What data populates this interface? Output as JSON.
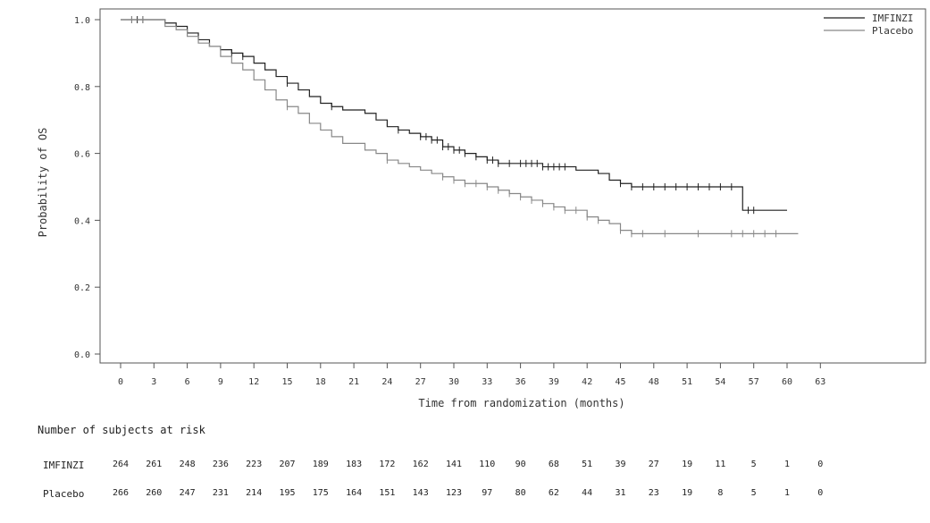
{
  "chart_data": {
    "type": "line",
    "xlabel": "Time from randomization (months)",
    "ylabel": "Probability of OS",
    "xlim": [
      -3,
      78
    ],
    "ylim": [
      0.0,
      1.0
    ],
    "x_ticks": [
      "0",
      "3",
      "6",
      "9",
      "12",
      "15",
      "18",
      "21",
      "24",
      "27",
      "30",
      "33",
      "36",
      "39",
      "42",
      "45",
      "48",
      "51",
      "54",
      "57",
      "60",
      "63"
    ],
    "y_ticks": [
      "0.0",
      "0.2",
      "0.4",
      "0.6",
      "0.8",
      "1.0"
    ],
    "legend_position": "top-right",
    "series": [
      {
        "name": "IMFINZI",
        "color": "#222222",
        "points": [
          [
            0,
            1.0
          ],
          [
            3,
            1.0
          ],
          [
            4,
            0.99
          ],
          [
            5,
            0.98
          ],
          [
            6,
            0.96
          ],
          [
            7,
            0.94
          ],
          [
            8,
            0.92
          ],
          [
            9,
            0.91
          ],
          [
            10,
            0.9
          ],
          [
            11,
            0.89
          ],
          [
            12,
            0.87
          ],
          [
            13,
            0.85
          ],
          [
            14,
            0.83
          ],
          [
            15,
            0.81
          ],
          [
            16,
            0.79
          ],
          [
            17,
            0.77
          ],
          [
            18,
            0.75
          ],
          [
            19,
            0.74
          ],
          [
            20,
            0.73
          ],
          [
            21,
            0.73
          ],
          [
            22,
            0.72
          ],
          [
            23,
            0.7
          ],
          [
            24,
            0.68
          ],
          [
            25,
            0.67
          ],
          [
            26,
            0.66
          ],
          [
            27,
            0.65
          ],
          [
            28,
            0.64
          ],
          [
            29,
            0.62
          ],
          [
            30,
            0.61
          ],
          [
            31,
            0.6
          ],
          [
            32,
            0.59
          ],
          [
            33,
            0.58
          ],
          [
            34,
            0.57
          ],
          [
            35,
            0.57
          ],
          [
            36,
            0.57
          ],
          [
            38,
            0.56
          ],
          [
            40,
            0.56
          ],
          [
            41,
            0.55
          ],
          [
            42,
            0.55
          ],
          [
            43,
            0.54
          ],
          [
            44,
            0.52
          ],
          [
            45,
            0.51
          ],
          [
            46,
            0.5
          ],
          [
            56,
            0.5
          ],
          [
            56,
            0.43
          ],
          [
            60,
            0.43
          ]
        ],
        "censor_x": [
          1,
          1.5,
          2,
          10,
          11,
          15,
          19,
          25,
          27,
          27.5,
          28,
          28.5,
          29,
          29.5,
          30,
          30.5,
          31,
          32,
          33,
          33.5,
          34,
          35,
          36,
          36.5,
          37,
          37.5,
          38,
          38.5,
          39,
          39.5,
          40,
          45,
          46,
          47,
          48,
          49,
          50,
          51,
          52,
          53,
          54,
          55,
          56.5,
          57
        ]
      },
      {
        "name": "Placebo",
        "color": "#888888",
        "points": [
          [
            0,
            1.0
          ],
          [
            3,
            1.0
          ],
          [
            4,
            0.98
          ],
          [
            5,
            0.97
          ],
          [
            6,
            0.95
          ],
          [
            7,
            0.93
          ],
          [
            8,
            0.92
          ],
          [
            9,
            0.89
          ],
          [
            10,
            0.87
          ],
          [
            11,
            0.85
          ],
          [
            12,
            0.82
          ],
          [
            13,
            0.79
          ],
          [
            14,
            0.76
          ],
          [
            15,
            0.74
          ],
          [
            16,
            0.72
          ],
          [
            17,
            0.69
          ],
          [
            18,
            0.67
          ],
          [
            19,
            0.65
          ],
          [
            20,
            0.63
          ],
          [
            21,
            0.63
          ],
          [
            22,
            0.61
          ],
          [
            23,
            0.6
          ],
          [
            24,
            0.58
          ],
          [
            25,
            0.57
          ],
          [
            26,
            0.56
          ],
          [
            27,
            0.55
          ],
          [
            28,
            0.54
          ],
          [
            29,
            0.53
          ],
          [
            30,
            0.52
          ],
          [
            31,
            0.51
          ],
          [
            32,
            0.51
          ],
          [
            33,
            0.5
          ],
          [
            34,
            0.49
          ],
          [
            35,
            0.48
          ],
          [
            36,
            0.47
          ],
          [
            37,
            0.46
          ],
          [
            38,
            0.45
          ],
          [
            39,
            0.44
          ],
          [
            40,
            0.43
          ],
          [
            41,
            0.43
          ],
          [
            42,
            0.41
          ],
          [
            43,
            0.4
          ],
          [
            44,
            0.39
          ],
          [
            45,
            0.37
          ],
          [
            46,
            0.36
          ],
          [
            61,
            0.36
          ]
        ],
        "censor_x": [
          1,
          2,
          15,
          24,
          29,
          30,
          31,
          32,
          33,
          34,
          35,
          36,
          37,
          38,
          39,
          40,
          41,
          42,
          43,
          45,
          46,
          47,
          49,
          52,
          55,
          56,
          57,
          58,
          59
        ]
      }
    ]
  },
  "risk_table": {
    "title": "Number of subjects at risk",
    "rows": [
      {
        "label": "IMFINZI",
        "values": [
          "264",
          "261",
          "248",
          "236",
          "223",
          "207",
          "189",
          "183",
          "172",
          "162",
          "141",
          "110",
          "90",
          "68",
          "51",
          "39",
          "27",
          "19",
          "11",
          "5",
          "1",
          "0"
        ]
      },
      {
        "label": "Placebo",
        "values": [
          "266",
          "260",
          "247",
          "231",
          "214",
          "195",
          "175",
          "164",
          "151",
          "143",
          "123",
          "97",
          "80",
          "62",
          "44",
          "31",
          "23",
          "19",
          "8",
          "5",
          "1",
          "0"
        ]
      }
    ]
  }
}
